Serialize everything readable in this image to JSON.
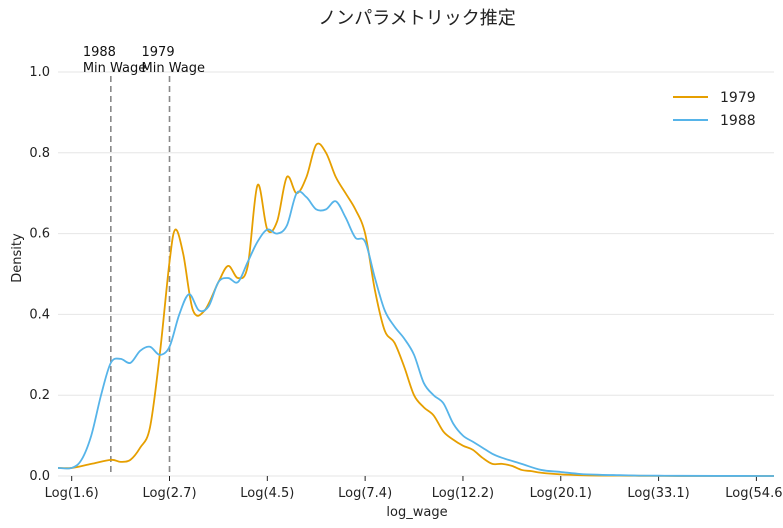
{
  "chart_data": {
    "type": "line",
    "title": "ノンパラメトリック推定",
    "xlabel": "log_wage",
    "ylabel": "Density",
    "xlim": [
      0.43,
      4.09
    ],
    "ylim": [
      0,
      1.0
    ],
    "y_ticks": [
      0.0,
      0.2,
      0.4,
      0.6,
      0.8,
      1.0
    ],
    "y_tick_labels": [
      "0.0",
      "0.2",
      "0.4",
      "0.6",
      "0.8",
      "1.0"
    ],
    "x_ticks": [
      0.5,
      1.0,
      1.5,
      2.0,
      2.5,
      3.0,
      3.5,
      4.0
    ],
    "x_tick_labels": [
      "Log(1.6)",
      "Log(2.7)",
      "Log(4.5)",
      "Log(7.4)",
      "Log(12.2)",
      "Log(20.1)",
      "Log(33.1)",
      "Log(54.6)"
    ],
    "grid": "horizontal",
    "legend": "top-right",
    "series": [
      {
        "name": "1979",
        "color": "#E69F00",
        "x": [
          0.43,
          0.5,
          0.6,
          0.7,
          0.75,
          0.8,
          0.85,
          0.9,
          0.95,
          1.0,
          1.03,
          1.07,
          1.12,
          1.18,
          1.25,
          1.3,
          1.35,
          1.4,
          1.45,
          1.5,
          1.55,
          1.6,
          1.65,
          1.7,
          1.75,
          1.8,
          1.85,
          1.9,
          1.95,
          2.0,
          2.05,
          2.1,
          2.15,
          2.2,
          2.25,
          2.3,
          2.35,
          2.4,
          2.45,
          2.5,
          2.55,
          2.6,
          2.65,
          2.7,
          2.75,
          2.8,
          2.85,
          2.9,
          3.0,
          3.1,
          3.2,
          3.3,
          3.4,
          3.5,
          3.6,
          3.8,
          4.09
        ],
        "y": [
          0.02,
          0.02,
          0.03,
          0.04,
          0.035,
          0.04,
          0.07,
          0.12,
          0.3,
          0.53,
          0.61,
          0.55,
          0.41,
          0.41,
          0.48,
          0.52,
          0.49,
          0.52,
          0.72,
          0.61,
          0.63,
          0.74,
          0.7,
          0.74,
          0.82,
          0.8,
          0.74,
          0.7,
          0.66,
          0.6,
          0.46,
          0.36,
          0.33,
          0.27,
          0.2,
          0.17,
          0.15,
          0.11,
          0.09,
          0.075,
          0.065,
          0.045,
          0.03,
          0.03,
          0.025,
          0.015,
          0.012,
          0.008,
          0.004,
          0.002,
          0.001,
          0.001,
          0.0005,
          0.0003,
          0.0002,
          0.0001,
          0.0
        ]
      },
      {
        "name": "1988",
        "color": "#56B4E9",
        "x": [
          0.43,
          0.5,
          0.55,
          0.6,
          0.65,
          0.7,
          0.75,
          0.8,
          0.85,
          0.9,
          0.95,
          1.0,
          1.05,
          1.1,
          1.15,
          1.2,
          1.25,
          1.3,
          1.35,
          1.4,
          1.45,
          1.5,
          1.55,
          1.6,
          1.65,
          1.7,
          1.75,
          1.8,
          1.85,
          1.9,
          1.95,
          2.0,
          2.05,
          2.1,
          2.15,
          2.2,
          2.25,
          2.3,
          2.35,
          2.4,
          2.45,
          2.5,
          2.55,
          2.6,
          2.65,
          2.7,
          2.8,
          2.9,
          3.0,
          3.1,
          3.2,
          3.3,
          3.4,
          3.5,
          3.6,
          3.8,
          4.09
        ],
        "y": [
          0.02,
          0.02,
          0.04,
          0.1,
          0.2,
          0.28,
          0.29,
          0.28,
          0.31,
          0.32,
          0.3,
          0.32,
          0.4,
          0.45,
          0.41,
          0.42,
          0.48,
          0.49,
          0.48,
          0.53,
          0.58,
          0.61,
          0.6,
          0.62,
          0.7,
          0.69,
          0.66,
          0.66,
          0.68,
          0.64,
          0.59,
          0.58,
          0.49,
          0.41,
          0.37,
          0.34,
          0.3,
          0.23,
          0.2,
          0.18,
          0.13,
          0.1,
          0.085,
          0.07,
          0.055,
          0.045,
          0.03,
          0.015,
          0.01,
          0.005,
          0.003,
          0.002,
          0.001,
          0.0008,
          0.0005,
          0.0002,
          0.0
        ]
      }
    ],
    "annotations": [
      {
        "x": 0.7,
        "label_lines": [
          "1988",
          "Min Wage"
        ],
        "line_style": "dashed",
        "color": "#888888"
      },
      {
        "x": 1.0,
        "label_lines": [
          "1979",
          "Min Wage"
        ],
        "line_style": "dashed",
        "color": "#888888"
      }
    ]
  }
}
